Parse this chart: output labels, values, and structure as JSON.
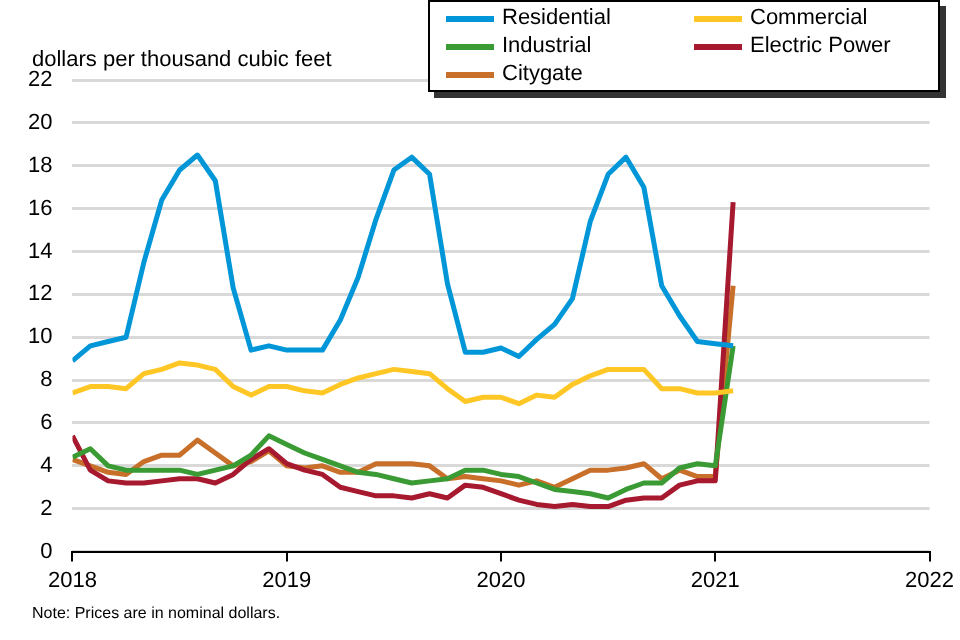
{
  "chart_data": {
    "type": "line",
    "ylabel": "dollars per thousand cubic feet",
    "annotations": [
      "Note: Prices are in nominal dollars."
    ],
    "x": [
      "2018-01",
      "2018-02",
      "2018-03",
      "2018-04",
      "2018-05",
      "2018-06",
      "2018-07",
      "2018-08",
      "2018-09",
      "2018-10",
      "2018-11",
      "2018-12",
      "2019-01",
      "2019-02",
      "2019-03",
      "2019-04",
      "2019-05",
      "2019-06",
      "2019-07",
      "2019-08",
      "2019-09",
      "2019-10",
      "2019-11",
      "2019-12",
      "2020-01",
      "2020-02",
      "2020-03",
      "2020-04",
      "2020-05",
      "2020-06",
      "2020-07",
      "2020-08",
      "2020-09",
      "2020-10",
      "2020-11",
      "2020-12",
      "2021-01",
      "2021-02"
    ],
    "series": [
      {
        "name": "Residential",
        "color": "#0096d7",
        "values": [
          8.9,
          9.6,
          9.8,
          10.0,
          13.5,
          16.4,
          17.8,
          18.5,
          17.3,
          12.3,
          9.4,
          9.6,
          9.4,
          9.4,
          9.4,
          10.8,
          12.8,
          15.5,
          17.8,
          18.4,
          17.6,
          12.5,
          9.3,
          9.3,
          9.5,
          9.1,
          9.9,
          10.6,
          11.8,
          15.4,
          17.6,
          18.4,
          17.0,
          12.4,
          11.0,
          9.8,
          9.7,
          9.6
        ]
      },
      {
        "name": "Commercial",
        "color": "#ffc726",
        "values": [
          7.4,
          7.7,
          7.7,
          7.6,
          8.3,
          8.5,
          8.8,
          8.7,
          8.5,
          7.7,
          7.3,
          7.7,
          7.7,
          7.5,
          7.4,
          7.8,
          8.1,
          8.3,
          8.5,
          8.4,
          8.3,
          7.6,
          7.0,
          7.2,
          7.2,
          6.9,
          7.3,
          7.2,
          7.8,
          8.2,
          8.5,
          8.5,
          8.5,
          7.6,
          7.6,
          7.4,
          7.4,
          7.5
        ]
      },
      {
        "name": "Industrial",
        "color": "#3a9b35",
        "values": [
          4.4,
          4.8,
          4.0,
          3.8,
          3.8,
          3.8,
          3.8,
          3.6,
          3.8,
          4.0,
          4.5,
          5.4,
          5.0,
          4.6,
          4.3,
          4.0,
          3.7,
          3.6,
          3.4,
          3.2,
          3.3,
          3.4,
          3.8,
          3.8,
          3.6,
          3.5,
          3.2,
          2.9,
          2.8,
          2.7,
          2.5,
          2.9,
          3.2,
          3.2,
          3.9,
          4.1,
          4.0,
          9.6
        ]
      },
      {
        "name": "Electric Power",
        "color": "#a6192e",
        "values": [
          5.4,
          3.8,
          3.3,
          3.2,
          3.2,
          3.3,
          3.4,
          3.4,
          3.2,
          3.6,
          4.3,
          4.8,
          4.1,
          3.8,
          3.6,
          3.0,
          2.8,
          2.6,
          2.6,
          2.5,
          2.7,
          2.5,
          3.1,
          3.0,
          2.7,
          2.4,
          2.2,
          2.1,
          2.2,
          2.1,
          2.1,
          2.4,
          2.5,
          2.5,
          3.1,
          3.3,
          3.3,
          16.3
        ]
      },
      {
        "name": "Citygate",
        "color": "#c86f2a",
        "values": [
          4.3,
          4.0,
          3.7,
          3.6,
          4.2,
          4.5,
          4.5,
          5.2,
          4.6,
          4.0,
          4.2,
          4.7,
          4.0,
          3.9,
          4.0,
          3.7,
          3.7,
          4.1,
          4.1,
          4.1,
          4.0,
          3.4,
          3.5,
          3.4,
          3.3,
          3.1,
          3.3,
          3.0,
          3.4,
          3.8,
          3.8,
          3.9,
          4.1,
          3.4,
          3.8,
          3.5,
          3.5,
          12.4
        ]
      }
    ],
    "xlim": [
      "2018",
      "2022"
    ],
    "xticks": [
      "2018",
      "2019",
      "2020",
      "2021",
      "2022"
    ],
    "ylim": [
      0,
      22
    ],
    "yticks": [
      0,
      2,
      4,
      6,
      8,
      10,
      12,
      14,
      16,
      18,
      20,
      22
    ],
    "grid": "y",
    "legend": "top right",
    "marker": "none",
    "line_style": "solid"
  }
}
